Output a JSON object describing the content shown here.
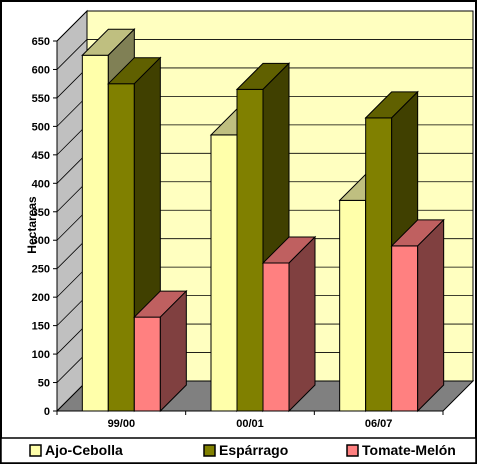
{
  "chart_data": {
    "type": "bar",
    "title": "",
    "xlabel": "",
    "ylabel": "Hectareas",
    "categories": [
      "99/00",
      "00/01",
      "06/07"
    ],
    "series": [
      {
        "name": "Ajo-Cebolla",
        "values": [
          625,
          485,
          370
        ],
        "color": "#FFFFAA"
      },
      {
        "name": "Espárrago",
        "values": [
          575,
          565,
          515
        ],
        "color": "#808000"
      },
      {
        "name": "Tomate-Melón",
        "values": [
          165,
          260,
          290
        ],
        "color": "#FF8080"
      }
    ],
    "ylim": [
      0,
      650
    ],
    "yticks": [
      0,
      50,
      100,
      150,
      200,
      250,
      300,
      350,
      400,
      450,
      500,
      550,
      600,
      650
    ],
    "grid": true,
    "legend_position": "bottom",
    "colors": {
      "wall": "#FFFFC0",
      "floor": "#808080",
      "side_wall": "#C0C0C0"
    }
  }
}
